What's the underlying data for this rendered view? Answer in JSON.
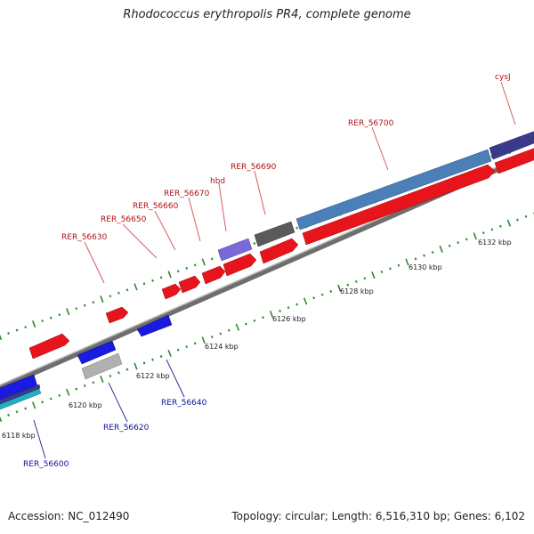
{
  "title": "Rhodococcus erythropolis PR4, complete genome",
  "footer": {
    "accession": "Accession: NC_012490",
    "stats": "Topology: circular; Length: 6,516,310 bp; Genes: 6,102"
  },
  "colors": {
    "backbone": "#7a7a7a",
    "forward_gene": "#e8141b",
    "reverse_gene": "#1a1ae0",
    "tick": "#2a8a2a",
    "forward_label": "#b01010",
    "reverse_label": "#10109a",
    "rna_light_blue": "#4a7fb8",
    "rna_purple": "#7a6ad8",
    "pseudo_gray": "#5a5a5a",
    "indigo": "#3a3a8a",
    "light_gray": "#b0b0b0",
    "cyan": "#20b0c0"
  },
  "scale_labels": [
    "6118 kbp",
    "6120 kbp",
    "6122 kbp",
    "6124 kbp",
    "6126 kbp",
    "6128 kbp",
    "6130 kbp",
    "6132 kbp"
  ],
  "forward_labels": [
    "RER_56630",
    "RER_56650",
    "RER_56660",
    "RER_56670",
    "hbd",
    "RER_56690",
    "RER_56700",
    "cysJ"
  ],
  "reverse_labels": [
    "RER_56600",
    "RER_56620",
    "RER_56640"
  ]
}
